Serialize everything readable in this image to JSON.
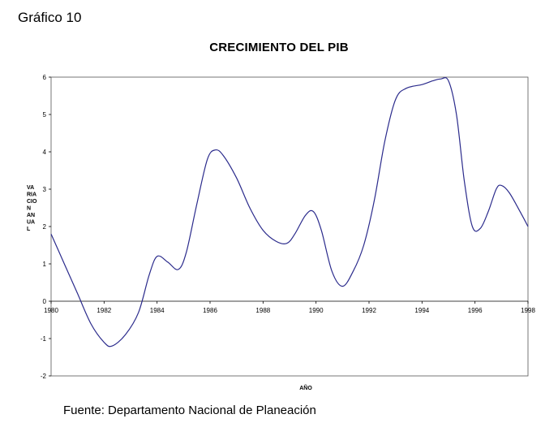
{
  "figure_label": "Gráfico 10",
  "source_note": "Fuente: Departamento Nacional de Planeación",
  "chart_data": {
    "type": "line",
    "title": "CRECIMIENTO DEL PIB",
    "xlabel": "AÑO",
    "ylabel": "VARIACION ANUAL",
    "ylabel_lines": [
      "VA",
      "RIA",
      "CIO",
      "N",
      "AN",
      "UA",
      "L"
    ],
    "xlim": [
      1980,
      1998
    ],
    "ylim": [
      -2,
      6
    ],
    "x_ticks": [
      1980,
      1982,
      1984,
      1986,
      1988,
      1990,
      1992,
      1994,
      1996,
      1998
    ],
    "y_ticks": [
      -2,
      -1,
      0,
      1,
      2,
      3,
      4,
      5,
      6
    ],
    "grid": false,
    "line_color": "#2b2b8c",
    "series": [
      {
        "x": [
          1980.0,
          1980.5,
          1981.0,
          1981.5,
          1982.0,
          1982.3,
          1982.8,
          1983.3,
          1983.7,
          1984.0,
          1984.4,
          1984.8,
          1985.1,
          1985.5,
          1985.9,
          1986.2,
          1986.5,
          1987.0,
          1987.5,
          1988.0,
          1988.5,
          1988.9,
          1989.2,
          1989.6,
          1989.9,
          1990.2,
          1990.6,
          1991.0,
          1991.4,
          1991.8,
          1992.2,
          1992.6,
          1993.0,
          1993.4,
          1994.0,
          1994.4,
          1994.7,
          1995.0,
          1995.3,
          1995.6,
          1995.9,
          1996.2,
          1996.5,
          1996.8,
          1997.0,
          1997.3,
          1997.7,
          1998.0
        ],
        "y": [
          1.8,
          1.0,
          0.2,
          -0.6,
          -1.1,
          -1.2,
          -0.9,
          -0.3,
          0.7,
          1.2,
          1.05,
          0.85,
          1.3,
          2.6,
          3.8,
          4.05,
          3.9,
          3.3,
          2.5,
          1.9,
          1.6,
          1.55,
          1.8,
          2.3,
          2.4,
          1.9,
          0.8,
          0.4,
          0.8,
          1.5,
          2.7,
          4.3,
          5.4,
          5.7,
          5.8,
          5.9,
          5.95,
          5.9,
          5.0,
          3.2,
          2.0,
          1.95,
          2.4,
          3.0,
          3.1,
          2.9,
          2.4,
          2.0
        ]
      }
    ]
  }
}
